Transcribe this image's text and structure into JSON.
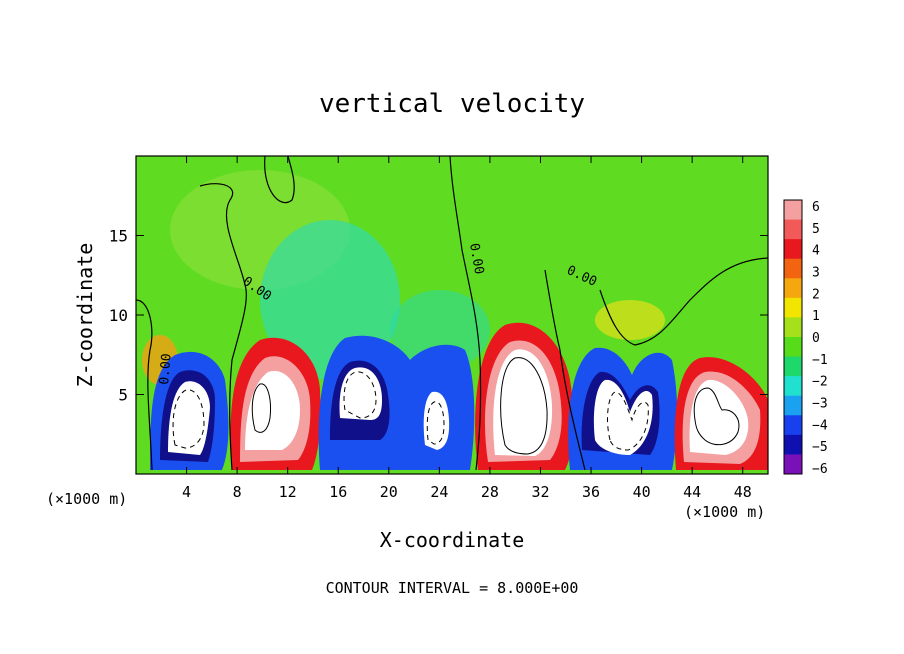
{
  "chart_data": {
    "type": "heatmap",
    "title": "vertical velocity",
    "xlabel": "X-coordinate",
    "ylabel": "Z-coordinate",
    "x_unit_left": "(×1000 m)",
    "x_unit_right": "(×1000 m)",
    "xlim": [
      0,
      50
    ],
    "ylim": [
      0,
      20
    ],
    "x_ticks": [
      {
        "value": 4,
        "label": "4"
      },
      {
        "value": 8,
        "label": "8"
      },
      {
        "value": 12,
        "label": "12"
      },
      {
        "value": 16,
        "label": "16"
      },
      {
        "value": 20,
        "label": "20"
      },
      {
        "value": 24,
        "label": "24"
      },
      {
        "value": 28,
        "label": "28"
      },
      {
        "value": 32,
        "label": "32"
      },
      {
        "value": 36,
        "label": "36"
      },
      {
        "value": 40,
        "label": "40"
      },
      {
        "value": 44,
        "label": "44"
      },
      {
        "value": 48,
        "label": "48"
      }
    ],
    "y_ticks": [
      {
        "value": 5,
        "label": "5"
      },
      {
        "value": 10,
        "label": "10"
      },
      {
        "value": 15,
        "label": "15"
      }
    ],
    "colorbar": {
      "min": -6,
      "max": 6,
      "labels": [
        "6",
        "5",
        "4",
        "3",
        "2",
        "1",
        "0",
        "−1",
        "−2",
        "−3",
        "−4",
        "−5",
        "−6"
      ],
      "colors": [
        "#f4a0a0",
        "#f25a5a",
        "#e8181e",
        "#f26410",
        "#f5a80e",
        "#f2e600",
        "#a6e01a",
        "#56dc18",
        "#1fd86c",
        "#20e0d0",
        "#1aa2f0",
        "#1840ee",
        "#1010b0",
        "#7a10b8"
      ]
    },
    "contour_labels": [
      "0.00",
      "0.00",
      "0.00",
      "0.00"
    ],
    "footer": "CONTOUR INTERVAL = 8.000E+00",
    "features": [
      {
        "x": 4.5,
        "z": 3.8,
        "w": -8
      },
      {
        "x": 10.0,
        "z": 4.5,
        "w": 8
      },
      {
        "x": 18.0,
        "z": 5.5,
        "w": -8
      },
      {
        "x": 23.0,
        "z": 3.5,
        "w": -8
      },
      {
        "x": 31.0,
        "z": 5.0,
        "w": 8
      },
      {
        "x": 39.0,
        "z": 4.0,
        "w": -8
      },
      {
        "x": 46.0,
        "z": 3.5,
        "w": 8
      }
    ]
  }
}
